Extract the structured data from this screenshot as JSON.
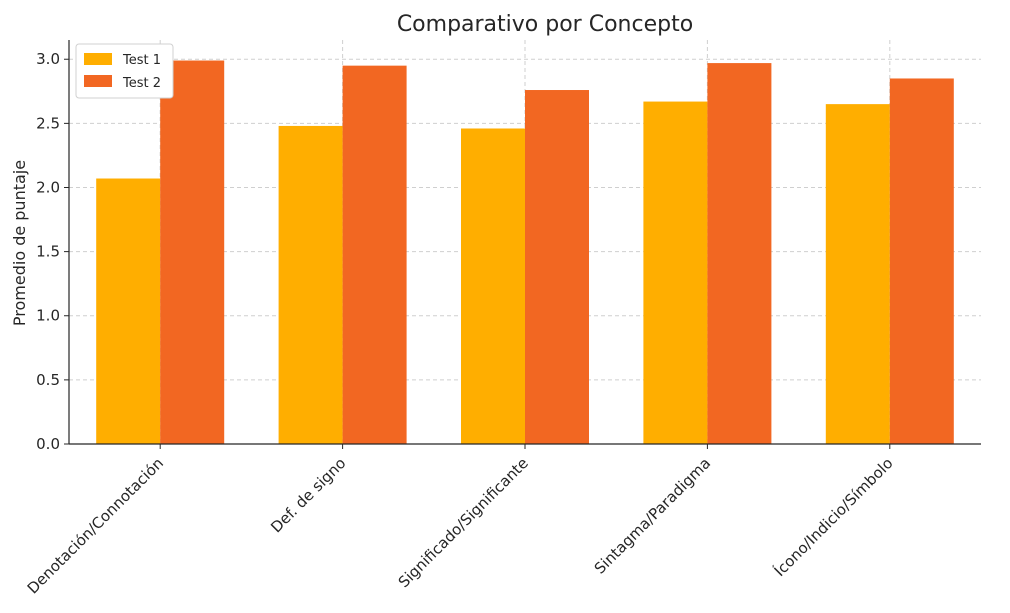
{
  "chart_data": {
    "type": "bar",
    "title": "Comparativo por Concepto",
    "xlabel": "",
    "ylabel": "Promedio de puntaje",
    "ylim": [
      0,
      3.15
    ],
    "yticks": [
      "0.0",
      "0.5",
      "1.0",
      "1.5",
      "2.0",
      "2.5",
      "3.0"
    ],
    "categories": [
      "Denotación/Connotación",
      "Def. de signo",
      "Significado/Significante",
      "Sintagma/Paradigma",
      "Ícono/Indicio/Símbolo"
    ],
    "series": [
      {
        "name": "Test 1",
        "color": "#FFAE00",
        "values": [
          2.07,
          2.48,
          2.46,
          2.67,
          2.65
        ]
      },
      {
        "name": "Test 2",
        "color": "#F26722",
        "values": [
          2.99,
          2.95,
          2.76,
          2.97,
          2.85
        ]
      }
    ],
    "grid": true,
    "legend": "top-left"
  }
}
